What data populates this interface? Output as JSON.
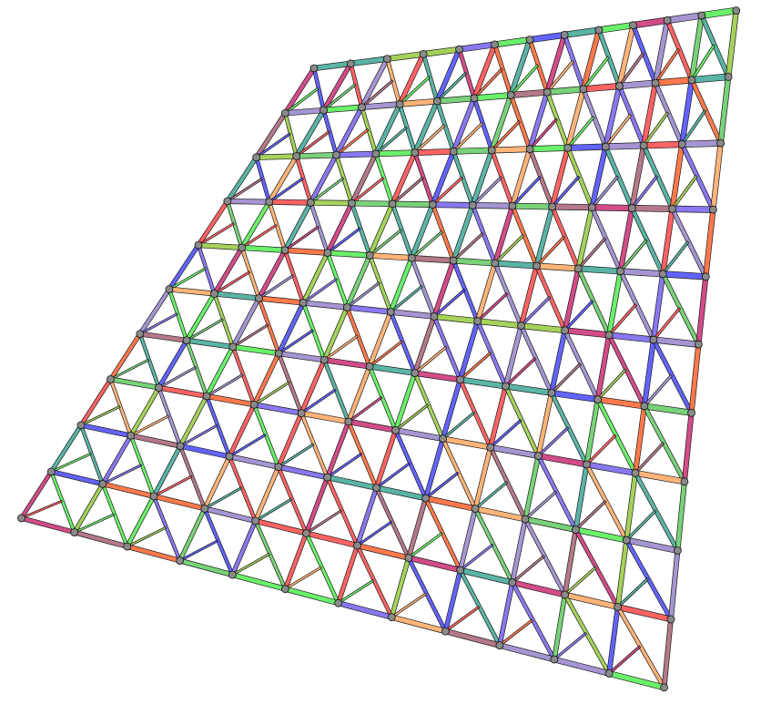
{
  "diagram": {
    "kind": "triangulated lattice truss (3D perspective render)",
    "grid": {
      "columns": 12,
      "rows": 10
    },
    "palette": [
      "#ff4d4d",
      "#4d4dff",
      "#55ee55",
      "#ffaa66",
      "#9988cc",
      "#44aa99",
      "#cc3377",
      "#99cc44",
      "#7766ee",
      "#aa6677",
      "#66cc66",
      "#ff6633"
    ],
    "joint_color": "#8a8a8a",
    "edge_color": "#1a1a1a",
    "background": "#ffffff"
  }
}
